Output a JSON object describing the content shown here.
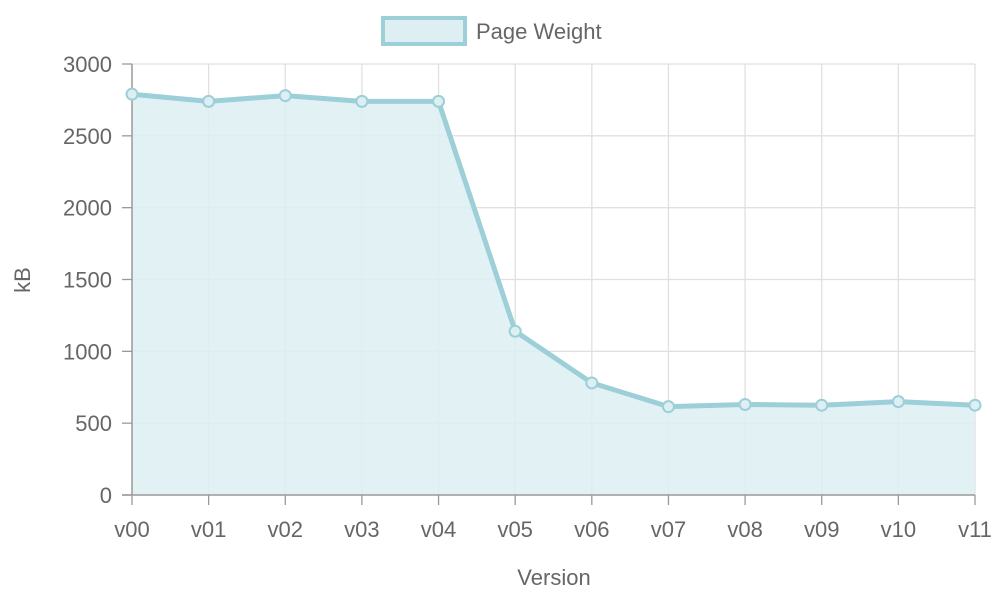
{
  "chart_data": {
    "type": "area",
    "categories": [
      "v00",
      "v01",
      "v02",
      "v03",
      "v04",
      "v05",
      "v06",
      "v07",
      "v08",
      "v09",
      "v10",
      "v11"
    ],
    "series": [
      {
        "name": "Page Weight",
        "values": [
          2790,
          2740,
          2780,
          2740,
          2740,
          1140,
          780,
          615,
          630,
          625,
          650,
          625
        ]
      }
    ],
    "xlabel": "Version",
    "ylabel": "kB",
    "ylim": [
      0,
      3000
    ],
    "yticks": [
      "0",
      "500",
      "1000",
      "1500",
      "2000",
      "2500",
      "3000"
    ],
    "grid": true,
    "legend_position": "top",
    "colors": {
      "line": "#9ccfd8",
      "fill": "#ddeff2",
      "grid": "#e0e0e0",
      "axis": "#999999",
      "text": "#666666"
    }
  }
}
